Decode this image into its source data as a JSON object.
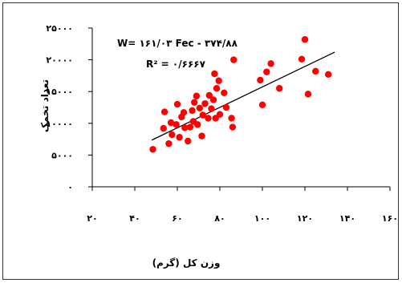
{
  "chart_data": {
    "type": "scatter",
    "x_ticks": [
      "۲۰",
      "۴۰",
      "۶۰",
      "۸۰",
      "۱۰۰",
      "۱۲۰",
      "۱۴۰",
      "۱۶۰"
    ],
    "y_ticks": [
      "۰",
      "۵۰۰۰",
      "۱۰۰۰۰",
      "۱۵۰۰۰",
      "۲۰۰۰۰",
      "۲۵۰۰۰"
    ],
    "xlabel": "وزن کل (گرم)",
    "ylabel": "تعداد تخمک",
    "xlim": [
      20,
      160
    ],
    "ylim": [
      0,
      25000
    ],
    "x_tick_values": [
      20,
      40,
      60,
      80,
      100,
      120,
      140,
      160
    ],
    "y_tick_values": [
      0,
      5000,
      10000,
      15000,
      20000,
      25000
    ],
    "point_color": "#ff0000",
    "grid": false,
    "equation_line1": "W= ۱۶۱/۰۳ Fec -  ۳۷۴/۸۸",
    "equation_line2": "R² = ۰/۶۶۶۷",
    "trendline": {
      "slope": 161.03,
      "intercept": -374.88,
      "x_range": [
        48,
        134
      ]
    },
    "points": [
      [
        48.5,
        5900
      ],
      [
        53.5,
        9200
      ],
      [
        54,
        11800
      ],
      [
        56,
        6800
      ],
      [
        57,
        10100
      ],
      [
        57.5,
        8200
      ],
      [
        59.5,
        9800
      ],
      [
        60,
        13000
      ],
      [
        61,
        7800
      ],
      [
        62,
        11000
      ],
      [
        63,
        11700
      ],
      [
        63.5,
        9300
      ],
      [
        65,
        7200
      ],
      [
        66,
        9400
      ],
      [
        67,
        12000
      ],
      [
        67.5,
        10300
      ],
      [
        68,
        13300
      ],
      [
        69,
        14300
      ],
      [
        69.5,
        9800
      ],
      [
        70.5,
        12400
      ],
      [
        71.5,
        8000
      ],
      [
        72,
        11300
      ],
      [
        73,
        13100
      ],
      [
        74.5,
        10800
      ],
      [
        75,
        14400
      ],
      [
        76,
        12300
      ],
      [
        77,
        13700
      ],
      [
        77.5,
        17800
      ],
      [
        78,
        10800
      ],
      [
        78.5,
        15500
      ],
      [
        79.5,
        16700
      ],
      [
        80,
        11400
      ],
      [
        82,
        14800
      ],
      [
        83,
        12500
      ],
      [
        85.5,
        10800
      ],
      [
        86,
        9400
      ],
      [
        86.5,
        20000
      ],
      [
        99,
        16800
      ],
      [
        100,
        12900
      ],
      [
        102,
        18100
      ],
      [
        104,
        19400
      ],
      [
        108,
        15500
      ],
      [
        118.5,
        20100
      ],
      [
        120,
        23200
      ],
      [
        121.5,
        14600
      ],
      [
        125,
        18200
      ],
      [
        131,
        17700
      ]
    ]
  }
}
